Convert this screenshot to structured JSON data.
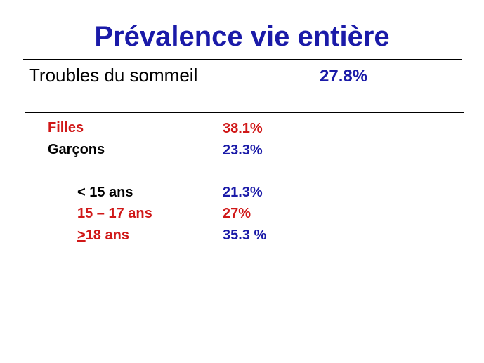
{
  "title": "Prévalence vie entière",
  "main": {
    "label": "Troubles du sommeil",
    "value": "27.8%"
  },
  "sex": {
    "girls": {
      "label": "Filles",
      "value": "38.1%"
    },
    "boys": {
      "label": "Garçons",
      "value": "23.3%"
    }
  },
  "age": {
    "under15": {
      "label": "< 15 ans",
      "value": "21.3%"
    },
    "range15_17": {
      "label": "15 – 17 ans",
      "value": "27%"
    },
    "over18": {
      "prefix": ">",
      "label": "18 ans",
      "value": "35.3 %"
    }
  },
  "colors": {
    "title": "#1a1aa8",
    "value_blue": "#1a1aa8",
    "value_red": "#d01818",
    "label_red": "#d01818",
    "label_black": "#000000"
  }
}
